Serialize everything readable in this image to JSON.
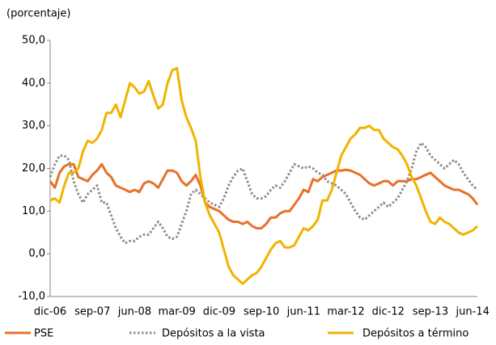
{
  "chart_data": {
    "type": "line",
    "y_label": "(porcentaje)",
    "categories": [
      "dic-06",
      null,
      null,
      null,
      null,
      null,
      null,
      null,
      null,
      "sep-07",
      null,
      null,
      null,
      null,
      null,
      null,
      null,
      null,
      "jun-08",
      null,
      null,
      null,
      null,
      null,
      null,
      null,
      null,
      "mar-09",
      null,
      null,
      null,
      null,
      null,
      null,
      null,
      null,
      "dic-09",
      null,
      null,
      null,
      null,
      null,
      null,
      null,
      null,
      "sep-10",
      null,
      null,
      null,
      null,
      null,
      null,
      null,
      null,
      "jun-11",
      null,
      null,
      null,
      null,
      null,
      null,
      null,
      null,
      "mar-12",
      null,
      null,
      null,
      null,
      null,
      null,
      null,
      null,
      "dic-12",
      null,
      null,
      null,
      null,
      null,
      null,
      null,
      null,
      "sep-13",
      null,
      null,
      null,
      null,
      null,
      null,
      null,
      null,
      "jun-14",
      null
    ],
    "ylim": [
      -10,
      50
    ],
    "yticks": [
      {
        "value": -10,
        "label": "-10,0"
      },
      {
        "value": 0,
        "label": "0,0"
      },
      {
        "value": 10,
        "label": "10,0"
      },
      {
        "value": 20,
        "label": "20,0"
      },
      {
        "value": 30,
        "label": "30,0"
      },
      {
        "value": 40,
        "label": "40,0"
      },
      {
        "value": 50,
        "label": "50,0"
      }
    ],
    "series": [
      {
        "name": "PSE",
        "color": "#e8702a",
        "dashed": false,
        "values": [
          17,
          15.5,
          19,
          20.5,
          21,
          21,
          18,
          17.5,
          17,
          18.5,
          19.5,
          21,
          19,
          18,
          16,
          15.5,
          15,
          14.5,
          15,
          14.5,
          16.5,
          17,
          16.5,
          15.5,
          17.5,
          19.5,
          19.5,
          19,
          17,
          16,
          17,
          18.5,
          16,
          12,
          11,
          10.5,
          10,
          9,
          8,
          7.5,
          7.5,
          7,
          7.5,
          6.5,
          6,
          6,
          7,
          8.5,
          8.5,
          9.5,
          10,
          10,
          11.5,
          13,
          15,
          14.5,
          17.5,
          17,
          18,
          18.5,
          19,
          19.5,
          19.5,
          19.7,
          19.5,
          19,
          18.5,
          17.5,
          16.5,
          16,
          16.5,
          17,
          17,
          16,
          17,
          17,
          17,
          17.5,
          17.5,
          18,
          18.5,
          19,
          18,
          17,
          16,
          15.5,
          15,
          15,
          14.5,
          14,
          13,
          11.5
        ]
      },
      {
        "name": "Depósitos a la vista",
        "color": "#8c8c8c",
        "dashed": true,
        "values": [
          18,
          21,
          23,
          23,
          22,
          17,
          14,
          12,
          14,
          15,
          16,
          12,
          12,
          9,
          6,
          4,
          2.5,
          3,
          3,
          4,
          4.5,
          4.5,
          6,
          7.5,
          6,
          4,
          3.5,
          4,
          7,
          10,
          14,
          15,
          14,
          13,
          12,
          11.5,
          11,
          13,
          16,
          18,
          19.5,
          20,
          17,
          14,
          13,
          13,
          13.5,
          15,
          16,
          15.5,
          17,
          19,
          21,
          20.5,
          20,
          20.5,
          20,
          19,
          18.5,
          17,
          16.5,
          16,
          15,
          14,
          12,
          10,
          8.5,
          8,
          9,
          10,
          11,
          12,
          11,
          12,
          13,
          15,
          17,
          20,
          24,
          26,
          25,
          23,
          22,
          21,
          20,
          21,
          22,
          21,
          19,
          17.5,
          16,
          15
        ]
      },
      {
        "name": "Depósitos a término",
        "color": "#f0b400",
        "dashed": false,
        "values": [
          12.5,
          13,
          12,
          16,
          19,
          19,
          20,
          24,
          26.5,
          26,
          27,
          29,
          33,
          33,
          35,
          32,
          36,
          40,
          39,
          37.5,
          38,
          40.5,
          37,
          34,
          35,
          40,
          43,
          43.5,
          36,
          32,
          29.5,
          26.5,
          18,
          12,
          9,
          7,
          5,
          1,
          -3,
          -5,
          -6,
          -7,
          -6,
          -5,
          -4.5,
          -3,
          -1,
          1,
          2.5,
          3,
          1.5,
          1.5,
          2,
          4,
          6,
          5.5,
          6.5,
          8,
          12.5,
          12.5,
          15,
          19,
          23,
          25,
          27,
          28,
          29.5,
          29.5,
          30,
          29,
          29,
          27,
          26,
          25,
          24.5,
          23,
          21,
          18,
          16,
          13,
          10,
          7.5,
          7,
          8.5,
          7.5,
          7,
          6,
          5,
          4.5,
          5,
          5.5,
          6.5
        ]
      }
    ]
  }
}
